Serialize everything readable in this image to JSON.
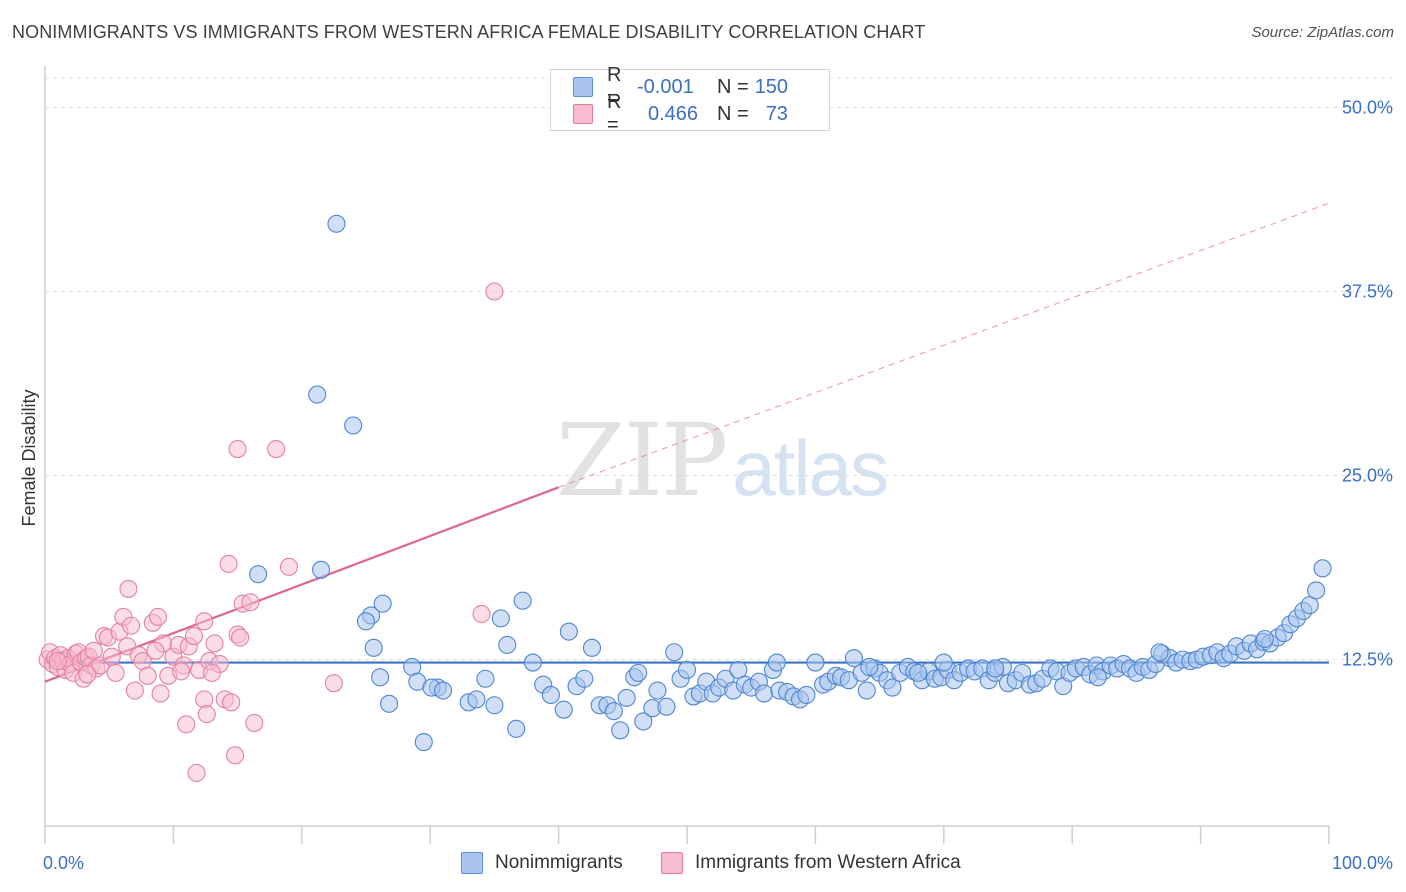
{
  "title": "NONIMMIGRANTS VS IMMIGRANTS FROM WESTERN AFRICA FEMALE DISABILITY CORRELATION CHART",
  "source": "Source: ZipAtlas.com",
  "watermark": {
    "zip": "ZIP",
    "atlas": "atlas"
  },
  "legend": {
    "rows": [
      {
        "r_label": "R =",
        "r_value": "-0.001",
        "n_label": "N =",
        "n_value": "150",
        "color": "#a9c5ef",
        "border": "#5a8fd6"
      },
      {
        "r_label": "R =",
        "r_value": "0.466",
        "n_label": "N =",
        "n_value": "73",
        "color": "#f7bccd",
        "border": "#e37a9c"
      }
    ]
  },
  "bottom_legend": {
    "nonimmigrants": "Nonimmigrants",
    "immigrants": "Immigrants from Western Africa"
  },
  "colors": {
    "blue_fill": "#a9c5ef",
    "blue_stroke": "#4f86d2",
    "blue_line": "#3a72c4",
    "pink_fill": "#f7bccd",
    "pink_stroke": "#e580a2",
    "pink_line": "#e0668f",
    "grid": "#dcdcdc",
    "axis": "#cfcfcf"
  },
  "chart_data": {
    "type": "scatter",
    "title": "NONIMMIGRANTS VS IMMIGRANTS FROM WESTERN AFRICA FEMALE DISABILITY CORRELATION CHART",
    "xlabel": "",
    "ylabel": "Female Disability",
    "xlim": [
      0,
      100
    ],
    "ylim": [
      1.2,
      52
    ],
    "x_tick_labels": [
      {
        "value": 0,
        "label": "0.0%"
      },
      {
        "value": 100,
        "label": "100.0%"
      }
    ],
    "y_tick_labels": [
      {
        "value": 12.5,
        "label": "12.5%"
      },
      {
        "value": 25.0,
        "label": "25.0%"
      },
      {
        "value": 37.5,
        "label": "37.5%"
      },
      {
        "value": 50.0,
        "label": "50.0%"
      }
    ],
    "x_minor_ticks": [
      0,
      10,
      20,
      30,
      40,
      50,
      60,
      70,
      80,
      90,
      100
    ],
    "grid": true,
    "series": [
      {
        "name": "Nonimmigrants",
        "r": -0.001,
        "n": 150,
        "trend": {
          "x": [
            0,
            100
          ],
          "y": [
            12.3,
            12.3
          ],
          "style": "solid"
        },
        "points": [
          [
            22.7,
            42.1
          ],
          [
            21.2,
            30.5
          ],
          [
            24.0,
            28.4
          ],
          [
            16.6,
            18.3
          ],
          [
            21.5,
            18.6
          ],
          [
            25.4,
            15.5
          ],
          [
            26.3,
            16.3
          ],
          [
            25.0,
            15.1
          ],
          [
            25.6,
            13.3
          ],
          [
            26.1,
            11.3
          ],
          [
            26.8,
            9.5
          ],
          [
            28.6,
            12.0
          ],
          [
            29.0,
            11.0
          ],
          [
            29.5,
            6.9
          ],
          [
            30.6,
            10.6
          ],
          [
            30.1,
            10.6
          ],
          [
            31.0,
            10.4
          ],
          [
            33.0,
            9.6
          ],
          [
            33.6,
            9.8
          ],
          [
            34.3,
            11.2
          ],
          [
            35.0,
            9.4
          ],
          [
            35.5,
            15.3
          ],
          [
            36.0,
            13.5
          ],
          [
            36.7,
            7.8
          ],
          [
            37.2,
            16.5
          ],
          [
            38.0,
            12.3
          ],
          [
            38.8,
            10.8
          ],
          [
            39.4,
            10.1
          ],
          [
            40.4,
            9.1
          ],
          [
            40.8,
            14.4
          ],
          [
            41.4,
            10.7
          ],
          [
            42.0,
            11.2
          ],
          [
            42.6,
            13.3
          ],
          [
            43.2,
            9.4
          ],
          [
            43.8,
            9.4
          ],
          [
            44.3,
            9.0
          ],
          [
            44.8,
            7.7
          ],
          [
            45.3,
            9.9
          ],
          [
            45.9,
            11.3
          ],
          [
            46.2,
            11.6
          ],
          [
            46.6,
            8.3
          ],
          [
            47.3,
            9.2
          ],
          [
            47.7,
            10.4
          ],
          [
            48.4,
            9.3
          ],
          [
            49.0,
            13.0
          ],
          [
            49.5,
            11.2
          ],
          [
            50.0,
            11.8
          ],
          [
            50.5,
            10.0
          ],
          [
            51.0,
            10.2
          ],
          [
            51.5,
            11.0
          ],
          [
            52.0,
            10.2
          ],
          [
            52.5,
            10.6
          ],
          [
            53.0,
            11.2
          ],
          [
            53.6,
            10.4
          ],
          [
            54.0,
            11.8
          ],
          [
            54.5,
            10.8
          ],
          [
            55.0,
            10.6
          ],
          [
            55.6,
            11.0
          ],
          [
            56.0,
            10.2
          ],
          [
            56.7,
            11.8
          ],
          [
            57.2,
            10.4
          ],
          [
            57.8,
            10.3
          ],
          [
            58.3,
            10.0
          ],
          [
            58.8,
            9.8
          ],
          [
            59.3,
            10.1
          ],
          [
            60.0,
            12.3
          ],
          [
            60.6,
            10.8
          ],
          [
            61.0,
            11.0
          ],
          [
            61.6,
            11.4
          ],
          [
            62.0,
            11.3
          ],
          [
            62.6,
            11.1
          ],
          [
            63.0,
            12.6
          ],
          [
            63.6,
            11.6
          ],
          [
            64.0,
            10.4
          ],
          [
            64.6,
            11.9
          ],
          [
            65.0,
            11.6
          ],
          [
            65.6,
            11.1
          ],
          [
            66.0,
            10.6
          ],
          [
            66.6,
            11.6
          ],
          [
            67.2,
            12.0
          ],
          [
            67.7,
            11.7
          ],
          [
            68.3,
            11.1
          ],
          [
            68.8,
            11.7
          ],
          [
            69.3,
            11.2
          ],
          [
            69.8,
            11.3
          ],
          [
            70.3,
            11.8
          ],
          [
            70.8,
            11.1
          ],
          [
            71.3,
            11.6
          ],
          [
            71.9,
            11.9
          ],
          [
            72.4,
            11.7
          ],
          [
            73.0,
            11.9
          ],
          [
            73.5,
            11.1
          ],
          [
            74.0,
            11.6
          ],
          [
            74.6,
            12.0
          ],
          [
            75.0,
            10.9
          ],
          [
            75.6,
            11.1
          ],
          [
            76.1,
            11.6
          ],
          [
            76.7,
            10.8
          ],
          [
            77.2,
            10.9
          ],
          [
            77.7,
            11.2
          ],
          [
            78.3,
            11.9
          ],
          [
            78.8,
            11.7
          ],
          [
            79.3,
            10.7
          ],
          [
            79.8,
            11.6
          ],
          [
            80.3,
            11.9
          ],
          [
            80.9,
            12.0
          ],
          [
            81.4,
            11.5
          ],
          [
            81.9,
            12.1
          ],
          [
            82.4,
            11.7
          ],
          [
            83.0,
            12.1
          ],
          [
            83.5,
            11.9
          ],
          [
            84.0,
            12.2
          ],
          [
            84.5,
            11.9
          ],
          [
            85.0,
            11.6
          ],
          [
            85.5,
            12.0
          ],
          [
            86.0,
            11.8
          ],
          [
            86.5,
            12.2
          ],
          [
            87.0,
            12.9
          ],
          [
            87.6,
            12.6
          ],
          [
            88.1,
            12.3
          ],
          [
            88.6,
            12.5
          ],
          [
            89.2,
            12.4
          ],
          [
            89.7,
            12.5
          ],
          [
            90.2,
            12.7
          ],
          [
            90.8,
            12.8
          ],
          [
            91.3,
            13.0
          ],
          [
            91.8,
            12.6
          ],
          [
            92.3,
            12.9
          ],
          [
            92.8,
            13.4
          ],
          [
            93.4,
            13.1
          ],
          [
            93.9,
            13.6
          ],
          [
            94.4,
            13.2
          ],
          [
            94.9,
            13.7
          ],
          [
            95.4,
            13.6
          ],
          [
            96.0,
            14.0
          ],
          [
            96.5,
            14.3
          ],
          [
            97.0,
            14.9
          ],
          [
            97.5,
            15.3
          ],
          [
            98.0,
            15.8
          ],
          [
            98.5,
            16.2
          ],
          [
            99.0,
            17.2
          ],
          [
            99.5,
            18.7
          ],
          [
            57.0,
            12.3
          ],
          [
            64.2,
            12.0
          ],
          [
            70.0,
            12.3
          ],
          [
            82.0,
            11.3
          ],
          [
            86.8,
            13.0
          ],
          [
            95.0,
            13.9
          ],
          [
            68.0,
            11.6
          ],
          [
            74.0,
            11.9
          ]
        ]
      },
      {
        "name": "Immigrants from Western Africa",
        "r": 0.466,
        "n": 73,
        "trend": {
          "x": [
            0,
            40
          ],
          "y": [
            11.0,
            24.2
          ],
          "style": "solid",
          "extended_x": [
            40,
            100
          ],
          "extended_y": [
            24.2,
            43.5
          ],
          "extended_style": "dashed"
        },
        "points": [
          [
            0.2,
            12.5
          ],
          [
            0.4,
            13.0
          ],
          [
            0.6,
            12.2
          ],
          [
            0.8,
            12.6
          ],
          [
            1.0,
            12.0
          ],
          [
            1.2,
            12.8
          ],
          [
            1.4,
            12.4
          ],
          [
            1.6,
            11.8
          ],
          [
            1.8,
            12.6
          ],
          [
            2.0,
            12.2
          ],
          [
            2.2,
            11.6
          ],
          [
            2.4,
            12.9
          ],
          [
            2.6,
            13.0
          ],
          [
            2.8,
            12.3
          ],
          [
            3.0,
            11.2
          ],
          [
            3.2,
            12.6
          ],
          [
            3.4,
            12.7
          ],
          [
            3.6,
            12.1
          ],
          [
            3.8,
            13.1
          ],
          [
            4.0,
            11.9
          ],
          [
            4.3,
            12.1
          ],
          [
            4.6,
            14.1
          ],
          [
            4.9,
            14.0
          ],
          [
            5.2,
            12.7
          ],
          [
            5.5,
            11.6
          ],
          [
            5.8,
            14.4
          ],
          [
            6.1,
            15.4
          ],
          [
            6.4,
            13.4
          ],
          [
            6.7,
            14.8
          ],
          [
            7.0,
            10.4
          ],
          [
            7.3,
            12.8
          ],
          [
            7.6,
            12.4
          ],
          [
            8.0,
            11.4
          ],
          [
            8.4,
            15.0
          ],
          [
            8.8,
            15.4
          ],
          [
            9.2,
            13.6
          ],
          [
            9.6,
            11.4
          ],
          [
            10.0,
            12.7
          ],
          [
            10.4,
            13.5
          ],
          [
            10.8,
            12.1
          ],
          [
            11.2,
            13.4
          ],
          [
            11.6,
            14.1
          ],
          [
            12.0,
            11.8
          ],
          [
            12.4,
            15.1
          ],
          [
            12.8,
            12.4
          ],
          [
            13.2,
            13.6
          ],
          [
            13.6,
            12.2
          ],
          [
            14.0,
            9.8
          ],
          [
            14.5,
            9.6
          ],
          [
            15.0,
            14.2
          ],
          [
            15.4,
            16.3
          ],
          [
            16.0,
            16.4
          ],
          [
            6.5,
            17.3
          ],
          [
            11.0,
            8.1
          ],
          [
            11.8,
            4.8
          ],
          [
            12.4,
            9.8
          ],
          [
            14.3,
            19.0
          ],
          [
            14.8,
            6.0
          ],
          [
            15.2,
            14.0
          ],
          [
            19.0,
            18.8
          ],
          [
            18.0,
            26.8
          ],
          [
            15.0,
            26.8
          ],
          [
            22.5,
            10.9
          ],
          [
            34.0,
            15.6
          ],
          [
            35.0,
            37.5
          ],
          [
            16.3,
            8.2
          ],
          [
            13.0,
            11.6
          ],
          [
            12.6,
            8.8
          ],
          [
            10.6,
            11.7
          ],
          [
            9.0,
            10.2
          ],
          [
            8.6,
            13.1
          ],
          [
            3.3,
            11.5
          ],
          [
            1.0,
            12.4
          ]
        ]
      }
    ]
  }
}
